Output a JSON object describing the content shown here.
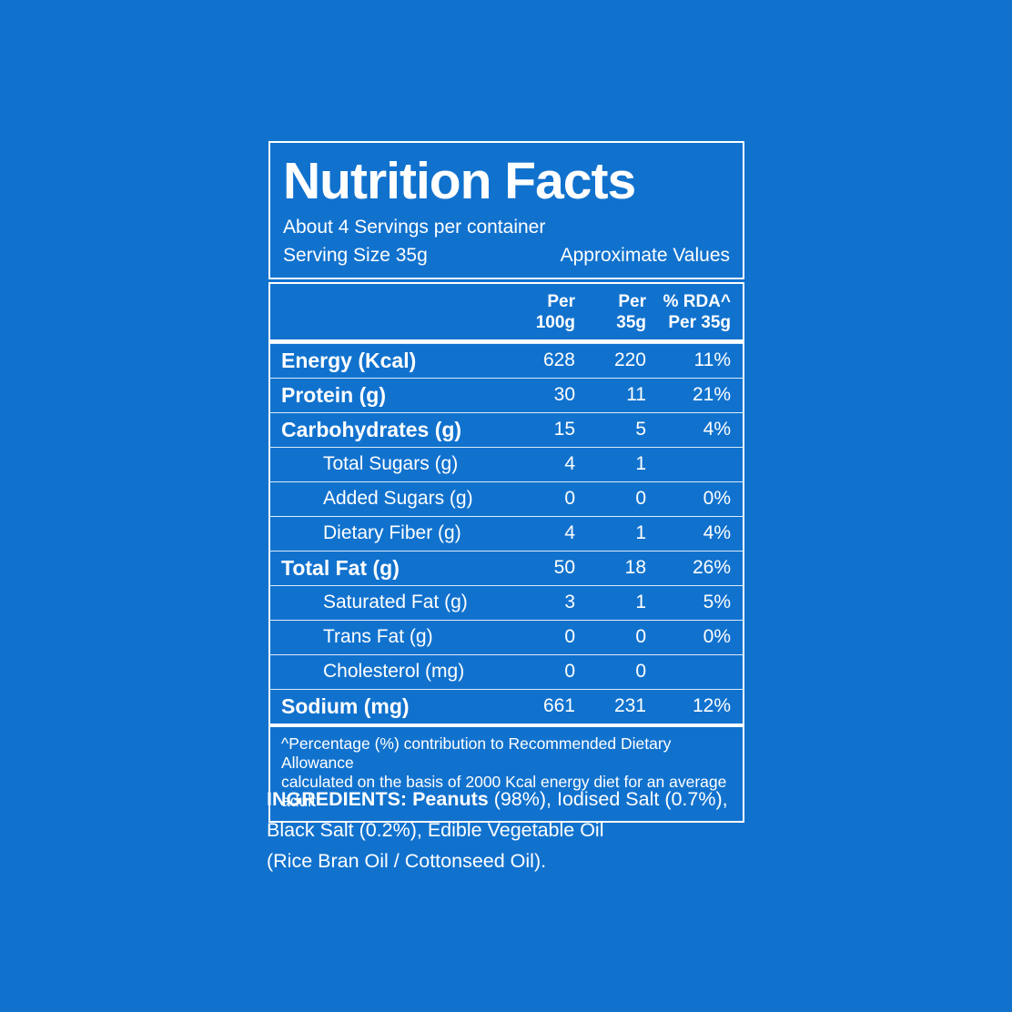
{
  "colors": {
    "background": "#1172CE",
    "text": "#FFFFFF",
    "border": "#FFFFFF"
  },
  "header": {
    "title": "Nutrition Facts",
    "servings_line": "About 4 Servings per container",
    "serving_size_line": "Serving Size 35g",
    "approx_values_label": "Approximate Values"
  },
  "table": {
    "columns": {
      "per100g": "Per\n100g",
      "per35g": "Per\n35g",
      "rda": "% RDA^\nPer 35g"
    },
    "rows": [
      {
        "label": "Energy (Kcal)",
        "per100g": "628",
        "per35g": "220",
        "rda": "11%"
      },
      {
        "label": "Protein (g)",
        "per100g": "30",
        "per35g": "11",
        "rda": "21%"
      },
      {
        "label": "Carbohydrates (g)",
        "per100g": "15",
        "per35g": "5",
        "rda": "4%"
      },
      {
        "label": "Total Sugars (g)",
        "per100g": "4",
        "per35g": "1",
        "rda": ""
      },
      {
        "label": "Added Sugars (g)",
        "per100g": "0",
        "per35g": "0",
        "rda": "0%"
      },
      {
        "label": "Dietary Fiber (g)",
        "per100g": "4",
        "per35g": "1",
        "rda": "4%"
      },
      {
        "label": "Total Fat (g)",
        "per100g": "50",
        "per35g": "18",
        "rda": "26%"
      },
      {
        "label": "Saturated Fat (g)",
        "per100g": "3",
        "per35g": "1",
        "rda": "5%"
      },
      {
        "label": "Trans Fat (g)",
        "per100g": "0",
        "per35g": "0",
        "rda": "0%"
      },
      {
        "label": "Cholesterol (mg)",
        "per100g": "0",
        "per35g": "0",
        "rda": ""
      },
      {
        "label": "Sodium (mg)",
        "per100g": "661",
        "per35g": "231",
        "rda": "12%"
      }
    ],
    "footnote_line1": "^Percentage (%) contribution to Recommended Dietary Allowance",
    "footnote_line2": "calculated on the basis of 2000 Kcal energy diet for an average adult"
  },
  "ingredients": {
    "label": "INGREDIENTS:",
    "bold_item": " Peanuts",
    "rest_line1": " (98%), Iodised Salt (0.7%),",
    "line2": "Black Salt (0.2%), Edible Vegetable Oil",
    "line3": "(Rice Bran Oil / Cottonseed Oil)."
  }
}
